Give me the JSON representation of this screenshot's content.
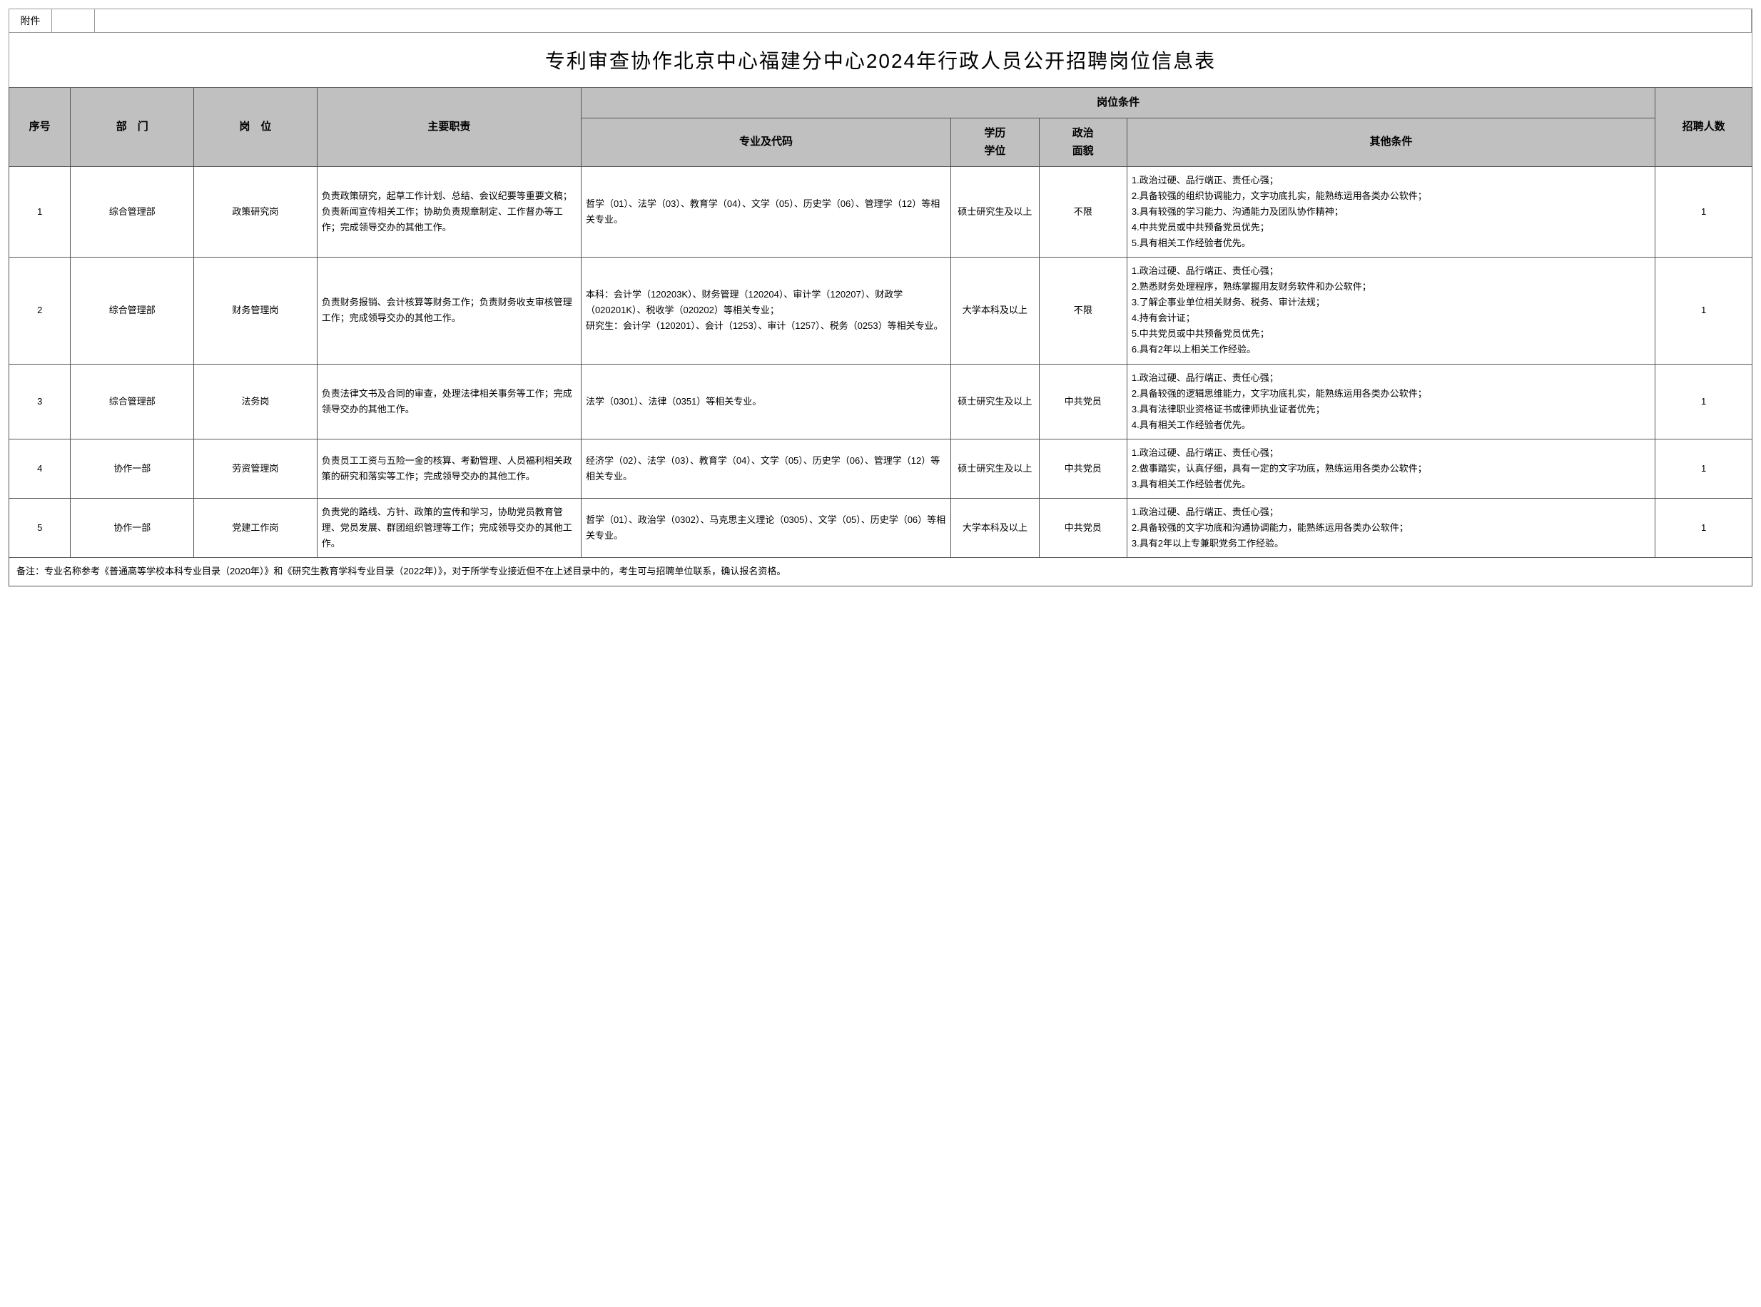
{
  "attachment_label": "附件",
  "title": "专利审查协作北京中心福建分中心2024年行政人员公开招聘岗位信息表",
  "headers": {
    "idx": "序号",
    "dept": "部　门",
    "pos": "岗　位",
    "duty": "主要职责",
    "cond_group": "岗位条件",
    "major": "专业及代码",
    "edu": "学历\n学位",
    "pol": "政治\n面貌",
    "other": "其他条件",
    "cnt": "招聘人数"
  },
  "rows": [
    {
      "idx": "1",
      "dept": "综合管理部",
      "pos": "政策研究岗",
      "duty": "负责政策研究，起草工作计划、总结、会议纪要等重要文稿；负责新闻宣传相关工作；协助负责规章制定、工作督办等工作；完成领导交办的其他工作。",
      "major": "哲学（01）、法学（03）、教育学（04）、文学（05）、历史学（06）、管理学（12）等相关专业。",
      "edu": "硕士研究生及以上",
      "pol": "不限",
      "other": "1.政治过硬、品行端正、责任心强；\n2.具备较强的组织协调能力，文字功底扎实，能熟练运用各类办公软件；\n3.具有较强的学习能力、沟通能力及团队协作精神；\n4.中共党员或中共预备党员优先；\n5.具有相关工作经验者优先。",
      "cnt": "1"
    },
    {
      "idx": "2",
      "dept": "综合管理部",
      "pos": "财务管理岗",
      "duty": "负责财务报销、会计核算等财务工作；负责财务收支审核管理工作；完成领导交办的其他工作。",
      "major": "本科：会计学（120203K）、财务管理（120204）、审计学（120207）、财政学（020201K）、税收学（020202）等相关专业；\n研究生：会计学（120201）、会计（1253）、审计（1257）、税务（0253）等相关专业。",
      "edu": "大学本科及以上",
      "pol": "不限",
      "other": "1.政治过硬、品行端正、责任心强；\n2.熟悉财务处理程序，熟练掌握用友财务软件和办公软件；\n3.了解企事业单位相关财务、税务、审计法规；\n4.持有会计证；\n5.中共党员或中共预备党员优先；\n6.具有2年以上相关工作经验。",
      "cnt": "1"
    },
    {
      "idx": "3",
      "dept": "综合管理部",
      "pos": "法务岗",
      "duty": "负责法律文书及合同的审查，处理法律相关事务等工作；完成领导交办的其他工作。",
      "major": "法学（0301）、法律（0351）等相关专业。",
      "edu": "硕士研究生及以上",
      "pol": "中共党员",
      "other": "1.政治过硬、品行端正、责任心强；\n2.具备较强的逻辑思维能力，文字功底扎实，能熟练运用各类办公软件；\n3.具有法律职业资格证书或律师执业证者优先；\n4.具有相关工作经验者优先。",
      "cnt": "1"
    },
    {
      "idx": "4",
      "dept": "协作一部",
      "pos": "劳资管理岗",
      "duty": "负责员工工资与五险一金的核算、考勤管理、人员福利相关政策的研究和落实等工作；完成领导交办的其他工作。",
      "major": "经济学（02）、法学（03）、教育学（04）、文学（05）、历史学（06）、管理学（12）等相关专业。",
      "edu": "硕士研究生及以上",
      "pol": "中共党员",
      "other": "1.政治过硬、品行端正、责任心强；\n2.做事踏实，认真仔细，具有一定的文字功底，熟练运用各类办公软件；\n3.具有相关工作经验者优先。",
      "cnt": "1"
    },
    {
      "idx": "5",
      "dept": "协作一部",
      "pos": "党建工作岗",
      "duty": "负责党的路线、方针、政策的宣传和学习，协助党员教育管理、党员发展、群团组织管理等工作；完成领导交办的其他工作。",
      "major": "哲学（01）、政治学（0302）、马克思主义理论（0305）、文学（05）、历史学（06）等相关专业。",
      "edu": "大学本科及以上",
      "pol": "中共党员",
      "other": "1.政治过硬、品行端正、责任心强；\n2.具备较强的文字功底和沟通协调能力，能熟练运用各类办公软件；\n3.具有2年以上专兼职党务工作经验。",
      "cnt": "1"
    }
  ],
  "footer": "备注：专业名称参考《普通高等学校本科专业目录（2020年）》和《研究生教育学科专业目录（2022年）》，对于所学专业接近但不在上述目录中的，考生可与招聘单位联系，确认报名资格。"
}
